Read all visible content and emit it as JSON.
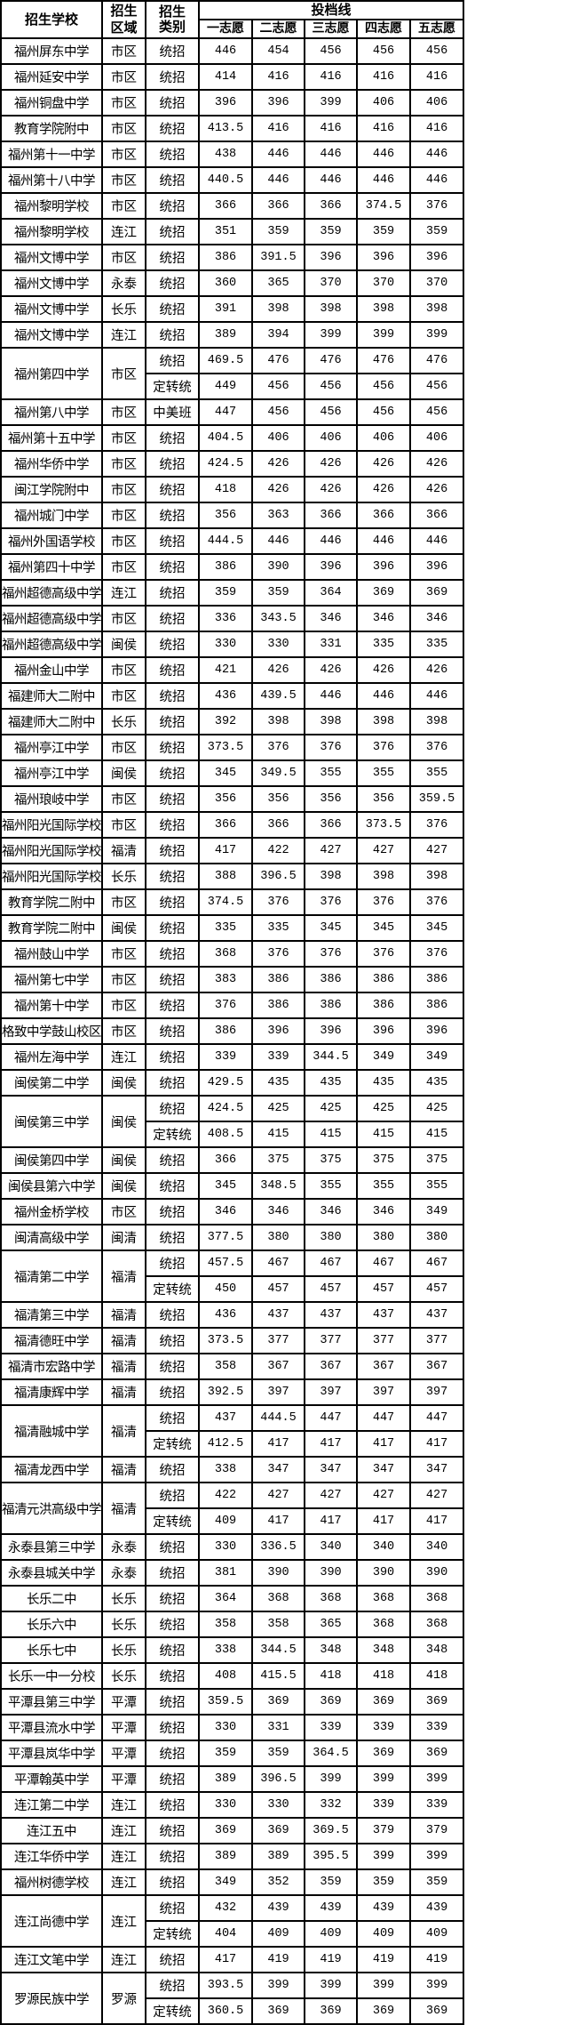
{
  "header": {
    "school": "招生学校",
    "region": "招生区域",
    "region_l1": "招生",
    "region_l2": "区域",
    "type_l1": "招生",
    "type_l2": "类别",
    "scores": "投档线",
    "choices": [
      "一志愿",
      "二志愿",
      "三志愿",
      "四志愿",
      "五志愿"
    ]
  },
  "rows": [
    {
      "school": "福州屏东中学",
      "region": "市区",
      "entries": [
        {
          "type": "统招",
          "scores": [
            "446",
            "454",
            "456",
            "456",
            "456"
          ]
        }
      ]
    },
    {
      "school": "福州延安中学",
      "region": "市区",
      "entries": [
        {
          "type": "统招",
          "scores": [
            "414",
            "416",
            "416",
            "416",
            "416"
          ]
        }
      ]
    },
    {
      "school": "福州铜盘中学",
      "region": "市区",
      "entries": [
        {
          "type": "统招",
          "scores": [
            "396",
            "396",
            "399",
            "406",
            "406"
          ]
        }
      ]
    },
    {
      "school": "教育学院附中",
      "region": "市区",
      "entries": [
        {
          "type": "统招",
          "scores": [
            "413.5",
            "416",
            "416",
            "416",
            "416"
          ]
        }
      ]
    },
    {
      "school": "福州第十一中学",
      "region": "市区",
      "entries": [
        {
          "type": "统招",
          "scores": [
            "438",
            "446",
            "446",
            "446",
            "446"
          ]
        }
      ]
    },
    {
      "school": "福州第十八中学",
      "region": "市区",
      "entries": [
        {
          "type": "统招",
          "scores": [
            "440.5",
            "446",
            "446",
            "446",
            "446"
          ]
        }
      ]
    },
    {
      "school": "福州黎明学校",
      "region": "市区",
      "entries": [
        {
          "type": "统招",
          "scores": [
            "366",
            "366",
            "366",
            "374.5",
            "376"
          ]
        }
      ]
    },
    {
      "school": "福州黎明学校",
      "region": "连江",
      "entries": [
        {
          "type": "统招",
          "scores": [
            "351",
            "359",
            "359",
            "359",
            "359"
          ]
        }
      ]
    },
    {
      "school": "福州文博中学",
      "region": "市区",
      "entries": [
        {
          "type": "统招",
          "scores": [
            "386",
            "391.5",
            "396",
            "396",
            "396"
          ]
        }
      ]
    },
    {
      "school": "福州文博中学",
      "region": "永泰",
      "entries": [
        {
          "type": "统招",
          "scores": [
            "360",
            "365",
            "370",
            "370",
            "370"
          ]
        }
      ]
    },
    {
      "school": "福州文博中学",
      "region": "长乐",
      "entries": [
        {
          "type": "统招",
          "scores": [
            "391",
            "398",
            "398",
            "398",
            "398"
          ]
        }
      ]
    },
    {
      "school": "福州文博中学",
      "region": "连江",
      "entries": [
        {
          "type": "统招",
          "scores": [
            "389",
            "394",
            "399",
            "399",
            "399"
          ]
        }
      ]
    },
    {
      "school": "福州第四中学",
      "region": "市区",
      "entries": [
        {
          "type": "统招",
          "scores": [
            "469.5",
            "476",
            "476",
            "476",
            "476"
          ]
        },
        {
          "type": "定转统",
          "scores": [
            "449",
            "456",
            "456",
            "456",
            "456"
          ]
        }
      ]
    },
    {
      "school": "福州第八中学",
      "region": "市区",
      "entries": [
        {
          "type": "中美班",
          "scores": [
            "447",
            "456",
            "456",
            "456",
            "456"
          ]
        }
      ]
    },
    {
      "school": "福州第十五中学",
      "region": "市区",
      "entries": [
        {
          "type": "统招",
          "scores": [
            "404.5",
            "406",
            "406",
            "406",
            "406"
          ]
        }
      ]
    },
    {
      "school": "福州华侨中学",
      "region": "市区",
      "entries": [
        {
          "type": "统招",
          "scores": [
            "424.5",
            "426",
            "426",
            "426",
            "426"
          ]
        }
      ]
    },
    {
      "school": "闽江学院附中",
      "region": "市区",
      "entries": [
        {
          "type": "统招",
          "scores": [
            "418",
            "426",
            "426",
            "426",
            "426"
          ]
        }
      ]
    },
    {
      "school": "福州城门中学",
      "region": "市区",
      "entries": [
        {
          "type": "统招",
          "scores": [
            "356",
            "363",
            "366",
            "366",
            "366"
          ]
        }
      ]
    },
    {
      "school": "福州外国语学校",
      "region": "市区",
      "entries": [
        {
          "type": "统招",
          "scores": [
            "444.5",
            "446",
            "446",
            "446",
            "446"
          ]
        }
      ]
    },
    {
      "school": "福州第四十中学",
      "region": "市区",
      "entries": [
        {
          "type": "统招",
          "scores": [
            "386",
            "390",
            "396",
            "396",
            "396"
          ]
        }
      ]
    },
    {
      "school": "福州超德高级中学",
      "region": "连江",
      "entries": [
        {
          "type": "统招",
          "scores": [
            "359",
            "359",
            "364",
            "369",
            "369"
          ]
        }
      ]
    },
    {
      "school": "福州超德高级中学",
      "region": "市区",
      "entries": [
        {
          "type": "统招",
          "scores": [
            "336",
            "343.5",
            "346",
            "346",
            "346"
          ]
        }
      ]
    },
    {
      "school": "福州超德高级中学",
      "region": "闽侯",
      "entries": [
        {
          "type": "统招",
          "scores": [
            "330",
            "330",
            "331",
            "335",
            "335"
          ]
        }
      ]
    },
    {
      "school": "福州金山中学",
      "region": "市区",
      "entries": [
        {
          "type": "统招",
          "scores": [
            "421",
            "426",
            "426",
            "426",
            "426"
          ]
        }
      ]
    },
    {
      "school": "福建师大二附中",
      "region": "市区",
      "entries": [
        {
          "type": "统招",
          "scores": [
            "436",
            "439.5",
            "446",
            "446",
            "446"
          ]
        }
      ]
    },
    {
      "school": "福建师大二附中",
      "region": "长乐",
      "entries": [
        {
          "type": "统招",
          "scores": [
            "392",
            "398",
            "398",
            "398",
            "398"
          ]
        }
      ]
    },
    {
      "school": "福州亭江中学",
      "region": "市区",
      "entries": [
        {
          "type": "统招",
          "scores": [
            "373.5",
            "376",
            "376",
            "376",
            "376"
          ]
        }
      ]
    },
    {
      "school": "福州亭江中学",
      "region": "闽侯",
      "entries": [
        {
          "type": "统招",
          "scores": [
            "345",
            "349.5",
            "355",
            "355",
            "355"
          ]
        }
      ]
    },
    {
      "school": "福州琅岐中学",
      "region": "市区",
      "entries": [
        {
          "type": "统招",
          "scores": [
            "356",
            "356",
            "356",
            "356",
            "359.5"
          ]
        }
      ]
    },
    {
      "school": "福州阳光国际学校",
      "region": "市区",
      "entries": [
        {
          "type": "统招",
          "scores": [
            "366",
            "366",
            "366",
            "373.5",
            "376"
          ]
        }
      ]
    },
    {
      "school": "福州阳光国际学校",
      "region": "福清",
      "entries": [
        {
          "type": "统招",
          "scores": [
            "417",
            "422",
            "427",
            "427",
            "427"
          ]
        }
      ]
    },
    {
      "school": "福州阳光国际学校",
      "region": "长乐",
      "entries": [
        {
          "type": "统招",
          "scores": [
            "388",
            "396.5",
            "398",
            "398",
            "398"
          ]
        }
      ]
    },
    {
      "school": "教育学院二附中",
      "region": "市区",
      "entries": [
        {
          "type": "统招",
          "scores": [
            "374.5",
            "376",
            "376",
            "376",
            "376"
          ]
        }
      ]
    },
    {
      "school": "教育学院二附中",
      "region": "闽侯",
      "entries": [
        {
          "type": "统招",
          "scores": [
            "335",
            "335",
            "345",
            "345",
            "345"
          ]
        }
      ]
    },
    {
      "school": "福州鼓山中学",
      "region": "市区",
      "entries": [
        {
          "type": "统招",
          "scores": [
            "368",
            "376",
            "376",
            "376",
            "376"
          ]
        }
      ]
    },
    {
      "school": "福州第七中学",
      "region": "市区",
      "entries": [
        {
          "type": "统招",
          "scores": [
            "383",
            "386",
            "386",
            "386",
            "386"
          ]
        }
      ]
    },
    {
      "school": "福州第十中学",
      "region": "市区",
      "entries": [
        {
          "type": "统招",
          "scores": [
            "376",
            "386",
            "386",
            "386",
            "386"
          ]
        }
      ]
    },
    {
      "school": "格致中学鼓山校区",
      "region": "市区",
      "entries": [
        {
          "type": "统招",
          "scores": [
            "386",
            "396",
            "396",
            "396",
            "396"
          ]
        }
      ]
    },
    {
      "school": "福州左海中学",
      "region": "连江",
      "entries": [
        {
          "type": "统招",
          "scores": [
            "339",
            "339",
            "344.5",
            "349",
            "349"
          ]
        }
      ]
    },
    {
      "school": "闽侯第二中学",
      "region": "闽侯",
      "entries": [
        {
          "type": "统招",
          "scores": [
            "429.5",
            "435",
            "435",
            "435",
            "435"
          ]
        }
      ]
    },
    {
      "school": "闽侯第三中学",
      "region": "闽侯",
      "entries": [
        {
          "type": "统招",
          "scores": [
            "424.5",
            "425",
            "425",
            "425",
            "425"
          ]
        },
        {
          "type": "定转统",
          "scores": [
            "408.5",
            "415",
            "415",
            "415",
            "415"
          ]
        }
      ]
    },
    {
      "school": "闽侯第四中学",
      "region": "闽侯",
      "entries": [
        {
          "type": "统招",
          "scores": [
            "366",
            "375",
            "375",
            "375",
            "375"
          ]
        }
      ]
    },
    {
      "school": "闽侯县第六中学",
      "region": "闽侯",
      "entries": [
        {
          "type": "统招",
          "scores": [
            "345",
            "348.5",
            "355",
            "355",
            "355"
          ]
        }
      ]
    },
    {
      "school": "福州金桥学校",
      "region": "市区",
      "entries": [
        {
          "type": "统招",
          "scores": [
            "346",
            "346",
            "346",
            "346",
            "349"
          ]
        }
      ]
    },
    {
      "school": "闽清高级中学",
      "region": "闽清",
      "entries": [
        {
          "type": "统招",
          "scores": [
            "377.5",
            "380",
            "380",
            "380",
            "380"
          ]
        }
      ]
    },
    {
      "school": "福清第二中学",
      "region": "福清",
      "entries": [
        {
          "type": "统招",
          "scores": [
            "457.5",
            "467",
            "467",
            "467",
            "467"
          ]
        },
        {
          "type": "定转统",
          "scores": [
            "450",
            "457",
            "457",
            "457",
            "457"
          ]
        }
      ]
    },
    {
      "school": "福清第三中学",
      "region": "福清",
      "entries": [
        {
          "type": "统招",
          "scores": [
            "436",
            "437",
            "437",
            "437",
            "437"
          ]
        }
      ]
    },
    {
      "school": "福清德旺中学",
      "region": "福清",
      "entries": [
        {
          "type": "统招",
          "scores": [
            "373.5",
            "377",
            "377",
            "377",
            "377"
          ]
        }
      ]
    },
    {
      "school": "福清市宏路中学",
      "region": "福清",
      "entries": [
        {
          "type": "统招",
          "scores": [
            "358",
            "367",
            "367",
            "367",
            "367"
          ]
        }
      ]
    },
    {
      "school": "福清康辉中学",
      "region": "福清",
      "entries": [
        {
          "type": "统招",
          "scores": [
            "392.5",
            "397",
            "397",
            "397",
            "397"
          ]
        }
      ]
    },
    {
      "school": "福清融城中学",
      "region": "福清",
      "entries": [
        {
          "type": "统招",
          "scores": [
            "437",
            "444.5",
            "447",
            "447",
            "447"
          ]
        },
        {
          "type": "定转统",
          "scores": [
            "412.5",
            "417",
            "417",
            "417",
            "417"
          ]
        }
      ]
    },
    {
      "school": "福清龙西中学",
      "region": "福清",
      "entries": [
        {
          "type": "统招",
          "scores": [
            "338",
            "347",
            "347",
            "347",
            "347"
          ]
        }
      ]
    },
    {
      "school": "福清元洪高级中学",
      "region": "福清",
      "entries": [
        {
          "type": "统招",
          "scores": [
            "422",
            "427",
            "427",
            "427",
            "427"
          ]
        },
        {
          "type": "定转统",
          "scores": [
            "409",
            "417",
            "417",
            "417",
            "417"
          ]
        }
      ]
    },
    {
      "school": "永泰县第三中学",
      "region": "永泰",
      "entries": [
        {
          "type": "统招",
          "scores": [
            "330",
            "336.5",
            "340",
            "340",
            "340"
          ]
        }
      ]
    },
    {
      "school": "永泰县城关中学",
      "region": "永泰",
      "entries": [
        {
          "type": "统招",
          "scores": [
            "381",
            "390",
            "390",
            "390",
            "390"
          ]
        }
      ]
    },
    {
      "school": "长乐二中",
      "region": "长乐",
      "entries": [
        {
          "type": "统招",
          "scores": [
            "364",
            "368",
            "368",
            "368",
            "368"
          ]
        }
      ]
    },
    {
      "school": "长乐六中",
      "region": "长乐",
      "entries": [
        {
          "type": "统招",
          "scores": [
            "358",
            "358",
            "365",
            "368",
            "368"
          ]
        }
      ]
    },
    {
      "school": "长乐七中",
      "region": "长乐",
      "entries": [
        {
          "type": "统招",
          "scores": [
            "338",
            "344.5",
            "348",
            "348",
            "348"
          ]
        }
      ]
    },
    {
      "school": "长乐一中一分校",
      "region": "长乐",
      "entries": [
        {
          "type": "统招",
          "scores": [
            "408",
            "415.5",
            "418",
            "418",
            "418"
          ]
        }
      ]
    },
    {
      "school": "平潭县第三中学",
      "region": "平潭",
      "entries": [
        {
          "type": "统招",
          "scores": [
            "359.5",
            "369",
            "369",
            "369",
            "369"
          ]
        }
      ]
    },
    {
      "school": "平潭县流水中学",
      "region": "平潭",
      "entries": [
        {
          "type": "统招",
          "scores": [
            "330",
            "331",
            "339",
            "339",
            "339"
          ]
        }
      ]
    },
    {
      "school": "平潭县岚华中学",
      "region": "平潭",
      "entries": [
        {
          "type": "统招",
          "scores": [
            "359",
            "359",
            "364.5",
            "369",
            "369"
          ]
        }
      ]
    },
    {
      "school": "平潭翰英中学",
      "region": "平潭",
      "entries": [
        {
          "type": "统招",
          "scores": [
            "389",
            "396.5",
            "399",
            "399",
            "399"
          ]
        }
      ]
    },
    {
      "school": "连江第二中学",
      "region": "连江",
      "entries": [
        {
          "type": "统招",
          "scores": [
            "330",
            "330",
            "332",
            "339",
            "339"
          ]
        }
      ]
    },
    {
      "school": "连江五中",
      "region": "连江",
      "entries": [
        {
          "type": "统招",
          "scores": [
            "369",
            "369",
            "369.5",
            "379",
            "379"
          ]
        }
      ]
    },
    {
      "school": "连江华侨中学",
      "region": "连江",
      "entries": [
        {
          "type": "统招",
          "scores": [
            "389",
            "389",
            "395.5",
            "399",
            "399"
          ]
        }
      ]
    },
    {
      "school": "福州树德学校",
      "region": "连江",
      "entries": [
        {
          "type": "统招",
          "scores": [
            "349",
            "352",
            "359",
            "359",
            "359"
          ]
        }
      ]
    },
    {
      "school": "连江尚德中学",
      "region": "连江",
      "entries": [
        {
          "type": "统招",
          "scores": [
            "432",
            "439",
            "439",
            "439",
            "439"
          ]
        },
        {
          "type": "定转统",
          "scores": [
            "404",
            "409",
            "409",
            "409",
            "409"
          ]
        }
      ]
    },
    {
      "school": "连江文笔中学",
      "region": "连江",
      "entries": [
        {
          "type": "统招",
          "scores": [
            "417",
            "419",
            "419",
            "419",
            "419"
          ]
        }
      ]
    },
    {
      "school": "罗源民族中学",
      "region": "罗源",
      "entries": [
        {
          "type": "统招",
          "scores": [
            "393.5",
            "399",
            "399",
            "399",
            "399"
          ]
        },
        {
          "type": "定转统",
          "scores": [
            "360.5",
            "369",
            "369",
            "369",
            "369"
          ]
        }
      ]
    }
  ]
}
